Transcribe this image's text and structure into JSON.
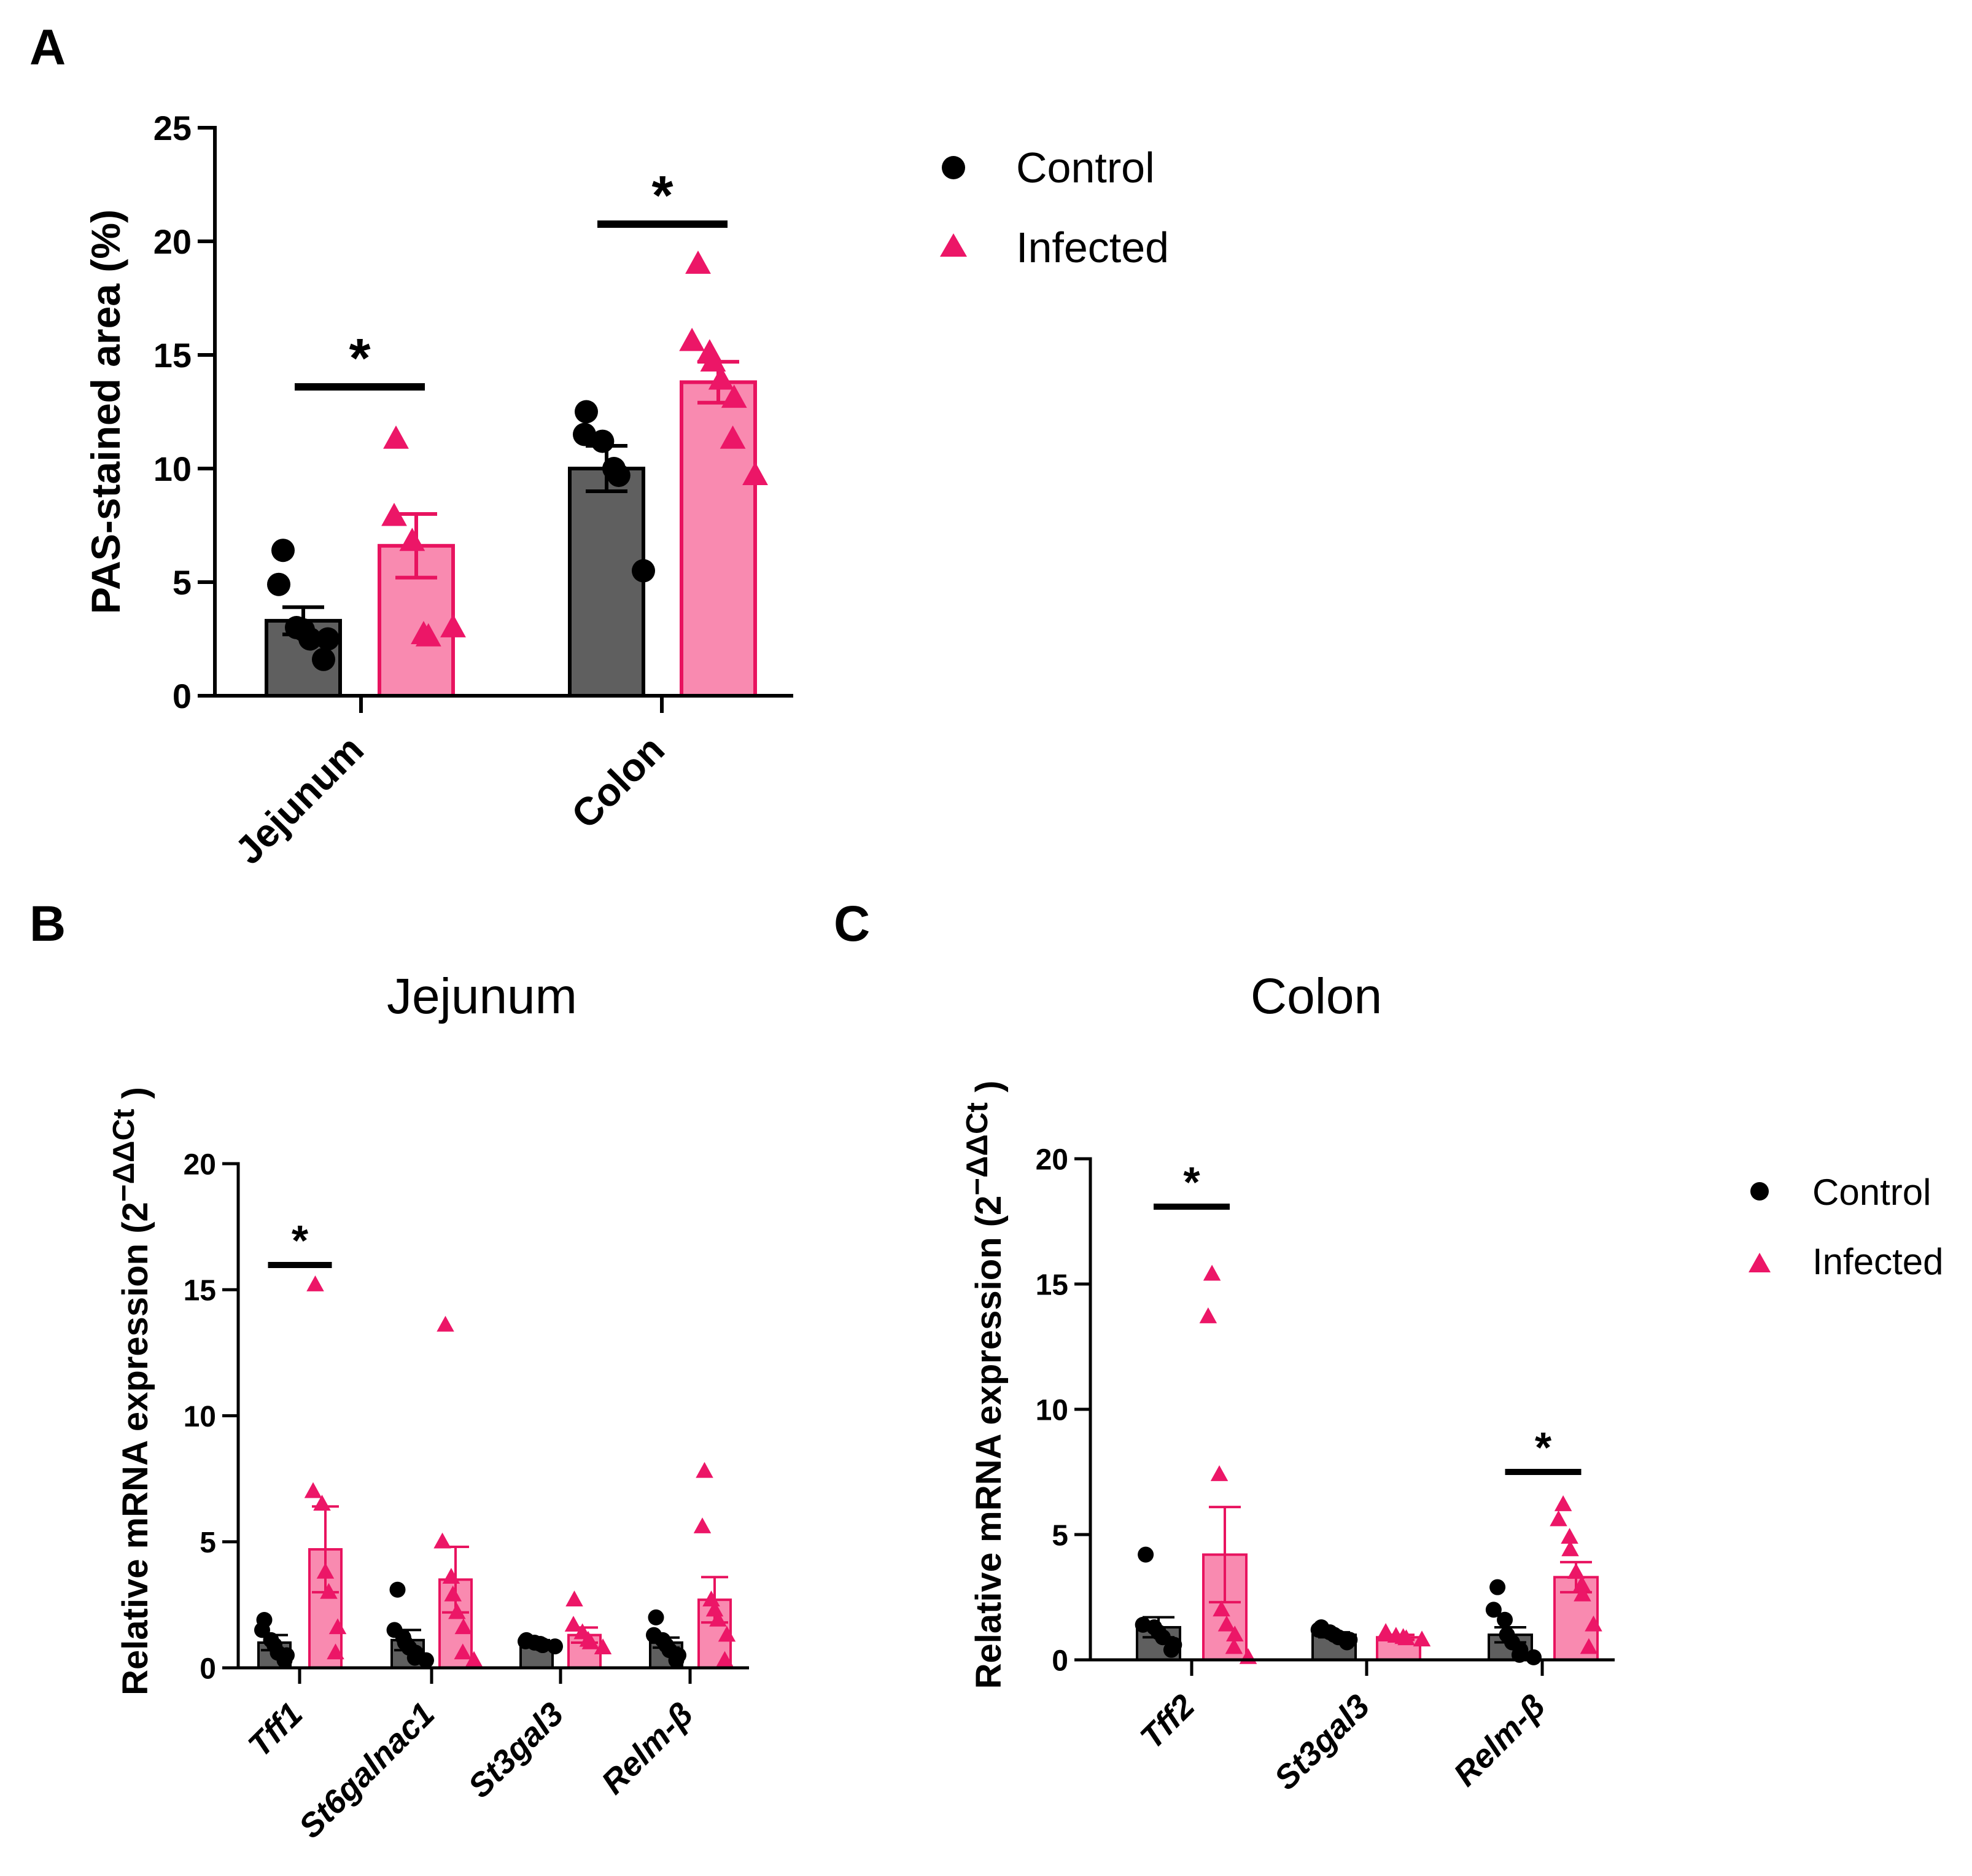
{
  "colors": {
    "control_bar": "#5f5f5f",
    "control_point": "#000000",
    "infected_bar": "#f98ab0",
    "infected_point": "#ec1667",
    "infected_edge": "#e8135f",
    "axis": "#000000"
  },
  "legend": {
    "control": "Control",
    "infected": "Infected"
  },
  "chart_data": [
    {
      "panel": "A",
      "type": "bar",
      "title": "",
      "xlabel": "",
      "ylabel": "PAS-stained area (%)",
      "ylim": [
        0,
        25
      ],
      "yticks": [
        "0",
        "5",
        "10",
        "15",
        "20",
        "25"
      ],
      "categories": [
        "Jejunum",
        "Colon"
      ],
      "series": [
        {
          "name": "Control",
          "values": [
            3.3,
            10.0
          ],
          "sem": [
            0.6,
            1.0
          ],
          "points": [
            [
              6.4,
              4.9,
              3.0,
              2.9,
              2.5,
              2.5,
              1.6
            ],
            [
              12.5,
              11.5,
              11.2,
              10.0,
              9.7,
              5.5
            ]
          ]
        },
        {
          "name": "Infected",
          "values": [
            6.6,
            13.8
          ],
          "sem": [
            1.4,
            0.9
          ],
          "points": [
            [
              11.3,
              7.9,
              6.8,
              2.7,
              2.6,
              3.0
            ],
            [
              19.0,
              15.6,
              15.1,
              14.7,
              13.9,
              13.1,
              11.3,
              9.7
            ]
          ]
        }
      ],
      "significance": [
        {
          "group": 0,
          "label": "*"
        },
        {
          "group": 1,
          "label": "*"
        }
      ]
    },
    {
      "panel": "B",
      "type": "bar",
      "title": "Jejunum",
      "xlabel": "",
      "ylabel": "Relative mRNA expression (2",
      "ylabel_sup": "−ΔΔCt",
      "ylabel_end": ")",
      "ylim": [
        0,
        20
      ],
      "yticks": [
        "0",
        "5",
        "10",
        "15",
        "20"
      ],
      "categories": [
        "Tff1",
        "St6galnac1",
        "St3gal3",
        "Relm-β"
      ],
      "series": [
        {
          "name": "Control",
          "values": [
            1.0,
            1.1,
            1.0,
            1.0
          ],
          "sem": [
            0.3,
            0.4,
            0.1,
            0.2
          ],
          "points": [
            [
              1.9,
              1.5,
              1.1,
              0.9,
              0.6,
              0.5,
              0.3
            ],
            [
              3.1,
              1.5,
              1.2,
              1.0,
              0.8,
              0.6,
              0.4,
              0.3
            ],
            [
              1.1,
              1.05,
              1.0,
              0.95,
              0.9,
              0.85
            ],
            [
              2.0,
              1.3,
              1.1,
              0.9,
              0.7,
              0.5,
              0.3
            ]
          ]
        },
        {
          "name": "Infected",
          "values": [
            4.7,
            3.5,
            1.3,
            2.7
          ],
          "sem": [
            1.7,
            1.3,
            0.3,
            0.9
          ],
          "points": [
            [
              15.2,
              7.0,
              6.5,
              3.8,
              3.0,
              1.6,
              0.6
            ],
            [
              13.6,
              5.0,
              3.6,
              2.9,
              2.2,
              1.6,
              0.6,
              0.3
            ],
            [
              2.7,
              1.7,
              1.4,
              1.1,
              1.0,
              0.8
            ],
            [
              7.8,
              5.6,
              2.7,
              2.3,
              1.9,
              1.3,
              0.3
            ]
          ]
        }
      ],
      "significance": [
        {
          "group": 0,
          "label": "*"
        }
      ]
    },
    {
      "panel": "C",
      "type": "bar",
      "title": "Colon",
      "xlabel": "",
      "ylabel": "Relative mRNA expression (2",
      "ylabel_sup": "−ΔΔCt",
      "ylabel_end": ")",
      "ylim": [
        0,
        20
      ],
      "yticks": [
        "0",
        "5",
        "10",
        "15",
        "20"
      ],
      "categories": [
        "Tff2",
        "St3gal3",
        "Relm-β"
      ],
      "series": [
        {
          "name": "Control",
          "values": [
            1.3,
            1.0,
            1.0
          ],
          "sem": [
            0.4,
            0.1,
            0.3
          ],
          "points": [
            [
              4.2,
              1.4,
              1.3,
              1.1,
              0.9,
              0.6,
              0.4
            ],
            [
              1.3,
              1.2,
              1.1,
              1.0,
              0.9,
              0.8,
              0.7
            ],
            [
              2.9,
              2.0,
              1.6,
              1.0,
              0.7,
              0.4,
              0.2,
              0.1
            ]
          ]
        },
        {
          "name": "Infected",
          "values": [
            4.2,
            0.9,
            3.3
          ],
          "sem": [
            1.9,
            0.1,
            0.6
          ],
          "points": [
            [
              15.4,
              13.7,
              7.4,
              2.0,
              1.4,
              1.0,
              0.5,
              0.1
            ],
            [
              1.1,
              1.0,
              0.95,
              0.9,
              0.85,
              0.8
            ],
            [
              6.2,
              5.6,
              4.9,
              4.4,
              3.5,
              3.0,
              2.6,
              1.4,
              0.5
            ]
          ]
        }
      ],
      "significance": [
        {
          "group": 0,
          "label": "*"
        },
        {
          "group": 2,
          "label": "*"
        }
      ]
    }
  ],
  "panel_labels": [
    "A",
    "B",
    "C"
  ]
}
